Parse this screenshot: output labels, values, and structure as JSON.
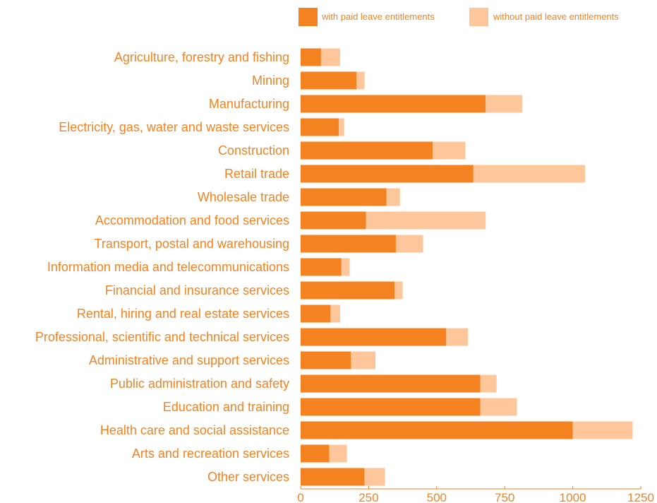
{
  "colors": {
    "with": "#F58220",
    "without": "#FDC79B",
    "label": "#F58220",
    "axis": "#F58220"
  },
  "chart_data": {
    "type": "bar",
    "orientation": "horizontal",
    "stacked": true,
    "categories": [
      "Agriculture, forestry and fishing",
      "Mining",
      "Manufacturing",
      "Electricity, gas, water and waste services",
      "Construction",
      "Retail trade",
      "Wholesale trade",
      "Accommodation and food services",
      "Transport, postal and warehousing",
      "Information media and telecommunications",
      "Financial and insurance services",
      "Rental, hiring and real estate services",
      "Professional, scientific and technical services",
      "Administrative and support services",
      "Public administration and safety",
      "Education and training",
      "Health care and social assistance",
      "Arts and recreation services",
      "Other services"
    ],
    "series": [
      {
        "name": "with paid leave entitlements",
        "color": "#F58220",
        "values": [
          75,
          205,
          680,
          140,
          485,
          635,
          315,
          240,
          350,
          150,
          345,
          110,
          535,
          185,
          660,
          660,
          1000,
          105,
          235
        ]
      },
      {
        "name": "without paid leave entitlements",
        "color": "#FDC79B",
        "values": [
          70,
          30,
          135,
          20,
          120,
          410,
          50,
          440,
          100,
          30,
          30,
          35,
          80,
          90,
          60,
          135,
          220,
          65,
          75
        ]
      }
    ],
    "xlim": [
      0,
      1250
    ],
    "xticks": [
      "0",
      "250",
      "500",
      "750",
      "1000",
      "1250"
    ],
    "xtick_values": [
      0,
      250,
      500,
      750,
      1000,
      1250
    ],
    "legend_position": "top-right",
    "grid": false,
    "title": "",
    "xlabel": "",
    "ylabel": ""
  }
}
